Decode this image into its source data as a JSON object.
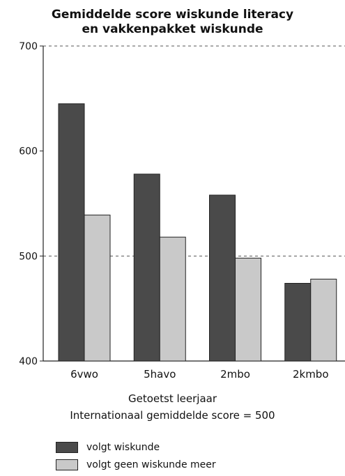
{
  "chart_data": {
    "type": "bar",
    "title_lines": [
      "Gemiddelde score wiskunde literacy",
      "en vakkenpakket wiskunde"
    ],
    "categories": [
      "6vwo",
      "5havo",
      "2mbo",
      "2kmbo"
    ],
    "series": [
      {
        "name": "volgt wiskunde",
        "values": [
          645,
          578,
          558,
          474
        ],
        "color": "#4a4a4a"
      },
      {
        "name": "volgt geen wiskunde meer",
        "values": [
          539,
          518,
          498,
          478
        ],
        "color": "#c9c9c9"
      }
    ],
    "xlabel": "Getoetst leerjaar",
    "subtitle": "Internationaal gemiddelde score = 500",
    "ylim": [
      400,
      700
    ],
    "yticks": [
      400,
      500,
      600,
      700
    ],
    "reference_lines": [
      500,
      700
    ],
    "grid": false,
    "legend_position": "bottom-left"
  }
}
